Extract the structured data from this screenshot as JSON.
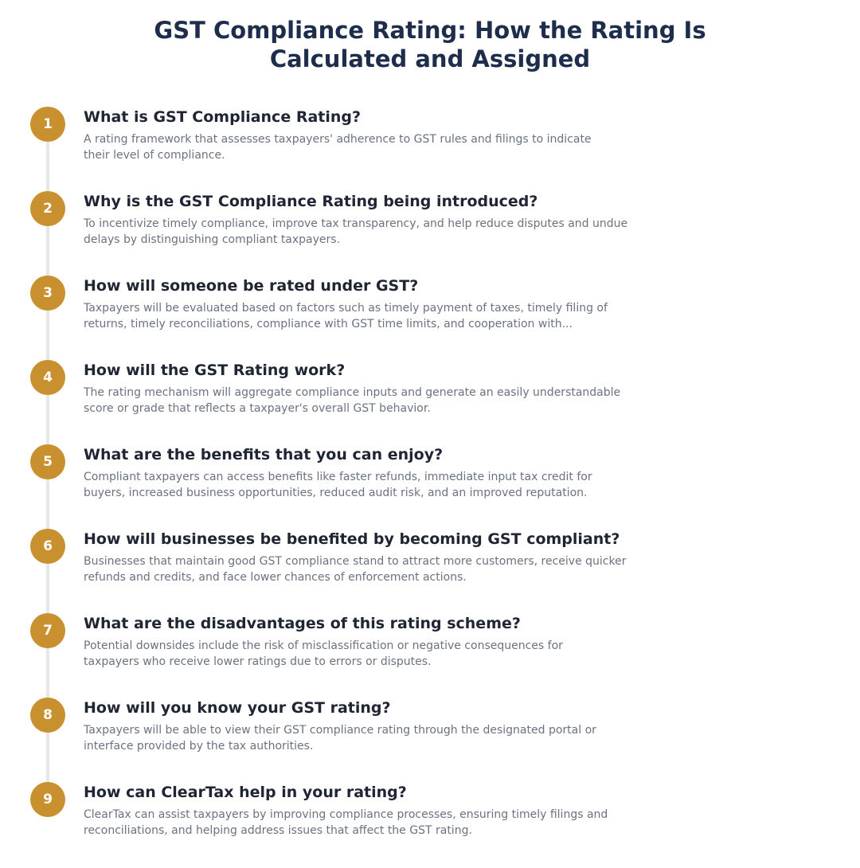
{
  "title": {
    "line1": "GST Compliance Rating: How the Rating Is",
    "line2": "Calculated and Assigned"
  },
  "colors": {
    "title": "#1f2d4c",
    "step_circle": "#c8902f",
    "question": "#1f2533",
    "answer": "#6b7280",
    "timeline": "#e7e7e7"
  },
  "items": [
    {
      "number": "1",
      "question": "What is GST Compliance Rating?",
      "answer_lines": [
        "A rating framework that assesses taxpayers' adherence to GST rules and filings to indicate",
        "their level of compliance."
      ]
    },
    {
      "number": "2",
      "question": "Why is the GST Compliance Rating being introduced?",
      "answer_lines": [
        "To incentivize timely compliance, improve tax transparency, and help reduce disputes and undue",
        "delays by distinguishing compliant taxpayers."
      ]
    },
    {
      "number": "3",
      "question": "How will someone be rated under GST?",
      "answer_lines": [
        "Taxpayers will be evaluated based on factors such as timely payment of taxes, timely filing of",
        "returns, timely reconciliations, compliance with GST time limits, and cooperation with..."
      ]
    },
    {
      "number": "4",
      "question": "How will the GST Rating work?",
      "answer_lines": [
        "The rating mechanism will aggregate compliance inputs and generate an easily understandable",
        "score or grade that reflects a taxpayer's overall GST behavior."
      ]
    },
    {
      "number": "5",
      "question": "What are the benefits that you can enjoy?",
      "answer_lines": [
        "Compliant taxpayers can access benefits like faster refunds, immediate input tax credit for",
        "buyers, increased business opportunities, reduced audit risk, and an improved reputation."
      ]
    },
    {
      "number": "6",
      "question": "How will businesses be benefited by becoming GST compliant?",
      "answer_lines": [
        "Businesses that maintain good GST compliance stand to attract more customers, receive quicker",
        "refunds and credits, and face lower chances of enforcement actions."
      ]
    },
    {
      "number": "7",
      "question": "What are the disadvantages of this rating scheme?",
      "answer_lines": [
        "Potential downsides include the risk of misclassification or negative consequences for",
        "taxpayers who receive lower ratings due to errors or disputes."
      ]
    },
    {
      "number": "8",
      "question": "How will you know your GST rating?",
      "answer_lines": [
        "Taxpayers will be able to view their GST compliance rating through the designated portal or",
        "interface provided by the tax authorities."
      ]
    },
    {
      "number": "9",
      "question": "How can ClearTax help in your rating?",
      "answer_lines": [
        "ClearTax can assist taxpayers by improving compliance processes, ensuring timely filings and",
        "reconciliations, and helping address issues that affect the GST rating."
      ]
    }
  ]
}
